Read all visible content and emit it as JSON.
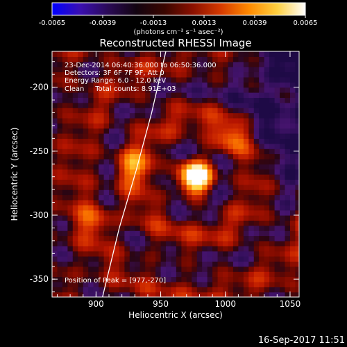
{
  "colorbar": {
    "ticks": [
      "-0.0065",
      "-0.0039",
      "-0.0013",
      "0.0013",
      "0.0039",
      "0.0065"
    ],
    "units": "(photons cm⁻² s⁻¹ asec⁻²)",
    "colormap": [
      "#0000ff",
      "#3a0fb0",
      "#2a0a55",
      "#120410",
      "#3a0600",
      "#8a1000",
      "#d63a00",
      "#ff8a00",
      "#ffd040",
      "#ffffff"
    ]
  },
  "footer": {
    "timestamp": "16-Sep-2017 11:51"
  },
  "annotations": {
    "line1": "23-Dec-2014 06:40:36.000 to 06:50:36.000",
    "line2": "Detectors: 3F 6F 7F 9F, Att 0",
    "line3": "Energy Range: 6.0 - 12.0 keV",
    "line4": "Clean     Total counts: 8.91E+03",
    "peak": "Position of Peak = [977,-270]"
  },
  "chart_data": {
    "type": "heatmap",
    "title": "Reconstructed RHESSI Image",
    "xlabel": "Heliocentric X (arcsec)",
    "ylabel": "Heliocentric Y (arcsec)",
    "xlim": [
      866,
      1057
    ],
    "ylim": [
      -364,
      -172
    ],
    "xticks": [
      "900",
      "950",
      "1000",
      "1050"
    ],
    "yticks": [
      "-200",
      "-250",
      "-300",
      "-350"
    ],
    "x_tick_values": [
      900,
      950,
      1000,
      1050
    ],
    "y_tick_values": [
      -200,
      -250,
      -300,
      -350
    ],
    "peak": {
      "x": 977,
      "y": -270
    },
    "secondary_sources": [
      {
        "x": 930,
        "y": -262
      },
      {
        "x": 1003,
        "y": -240
      },
      {
        "x": 900,
        "y": -303
      }
    ],
    "limb_curve": [
      [
        954,
        -172
      ],
      [
        943,
        -220
      ],
      [
        931,
        -265
      ],
      [
        918,
        -310
      ],
      [
        905,
        -364
      ]
    ]
  }
}
